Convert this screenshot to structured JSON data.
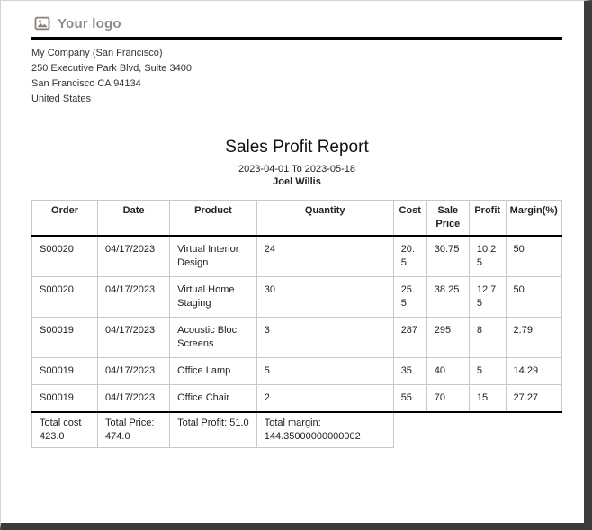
{
  "page": {
    "logo": {
      "text": "Your logo",
      "icon": "image-placeholder-icon"
    },
    "company": {
      "name": "My Company (San Francisco)",
      "street": "250 Executive Park Blvd, Suite 3400",
      "city_line": "San Francisco CA 94134",
      "country": "United States"
    },
    "report": {
      "title": "Sales Profit Report",
      "date_range": "2023-04-01 To 2023-05-18",
      "salesperson": "Joel Willis"
    },
    "table": {
      "headers": [
        "Order",
        "Date",
        "Product",
        "Quantity",
        "Cost",
        "Sale Price",
        "Profit",
        "Margin(%)"
      ],
      "rows": [
        [
          "S00020",
          "04/17/2023",
          "Virtual Interior Design",
          "24",
          "20.5",
          "30.75",
          "10.25",
          "50"
        ],
        [
          "S00020",
          "04/17/2023",
          "Virtual Home Staging",
          "30",
          "25.5",
          "38.25",
          "12.75",
          "50"
        ],
        [
          "S00019",
          "04/17/2023",
          "Acoustic Bloc Screens",
          "3",
          "287",
          "295",
          "8",
          "2.79"
        ],
        [
          "S00019",
          "04/17/2023",
          "Office Lamp",
          "5",
          "35",
          "40",
          "5",
          "14.29"
        ],
        [
          "S00019",
          "04/17/2023",
          "Office Chair",
          "2",
          "55",
          "70",
          "15",
          "27.27"
        ]
      ],
      "totals": {
        "cost": "Total cost 423.0",
        "price": "Total Price: 474.0",
        "profit": "Total Profit: 51.0",
        "margin": "Total margin: 144.35000000000002"
      }
    },
    "colors": {
      "logo_gray": "#8c8c8c",
      "divider_black": "#000000",
      "table_border_light": "#c9c9c9",
      "page_shadow": "#3d3d3d"
    }
  }
}
